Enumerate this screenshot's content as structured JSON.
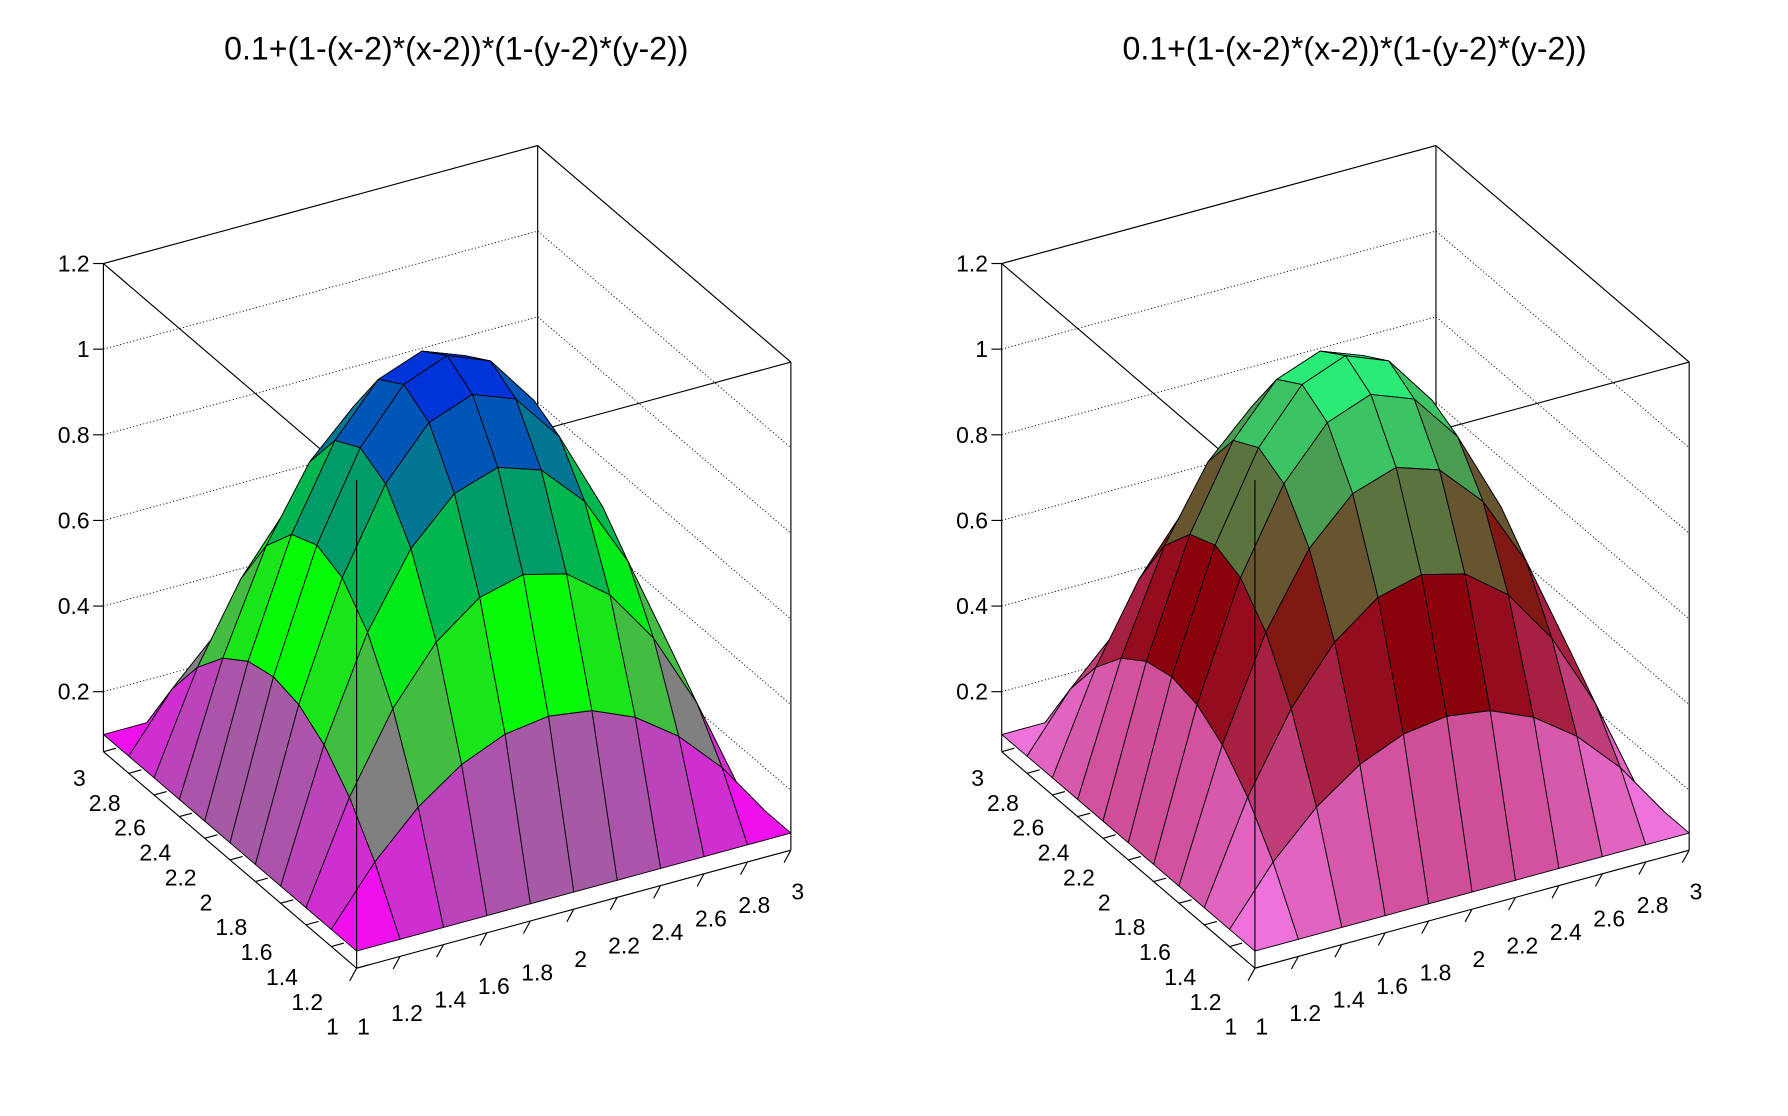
{
  "chart_data": [
    {
      "type": "surface",
      "title": "0.1+(1-(x-2)*(x-2))*(1-(y-2)*(y-2))",
      "x": [
        1,
        1.2,
        1.4,
        1.6,
        1.8,
        2,
        2.2,
        2.4,
        2.6,
        2.8,
        3
      ],
      "y": [
        1,
        1.2,
        1.4,
        1.6,
        1.8,
        2,
        2.2,
        2.4,
        2.6,
        2.8,
        3
      ],
      "z": [
        [
          0.1,
          0.1,
          0.1,
          0.1,
          0.1,
          0.1,
          0.1,
          0.1,
          0.1,
          0.1,
          0.1
        ],
        [
          0.1,
          0.2296,
          0.3304,
          0.4024,
          0.4456,
          0.46,
          0.4456,
          0.4024,
          0.3304,
          0.2296,
          0.1
        ],
        [
          0.1,
          0.3304,
          0.5096,
          0.6376,
          0.7144,
          0.74,
          0.7144,
          0.6376,
          0.5096,
          0.3304,
          0.1
        ],
        [
          0.1,
          0.4024,
          0.6376,
          0.8056,
          0.9064,
          0.94,
          0.9064,
          0.8056,
          0.6376,
          0.4024,
          0.1
        ],
        [
          0.1,
          0.4456,
          0.7144,
          0.9064,
          1.0216,
          1.06,
          1.0216,
          0.9064,
          0.7144,
          0.4456,
          0.1
        ],
        [
          0.1,
          0.46,
          0.74,
          0.94,
          1.06,
          1.1,
          1.06,
          0.94,
          0.74,
          0.46,
          0.1
        ],
        [
          0.1,
          0.4456,
          0.7144,
          0.9064,
          1.0216,
          1.06,
          1.0216,
          0.9064,
          0.7144,
          0.4456,
          0.1
        ],
        [
          0.1,
          0.4024,
          0.6376,
          0.8056,
          0.9064,
          0.94,
          0.9064,
          0.8056,
          0.6376,
          0.4024,
          0.1
        ],
        [
          0.1,
          0.3304,
          0.5096,
          0.6376,
          0.7144,
          0.74,
          0.7144,
          0.6376,
          0.5096,
          0.3304,
          0.1
        ],
        [
          0.1,
          0.2296,
          0.3304,
          0.4024,
          0.4456,
          0.46,
          0.4456,
          0.4024,
          0.3304,
          0.2296,
          0.1
        ],
        [
          0.1,
          0.1,
          0.1,
          0.1,
          0.1,
          0.1,
          0.1,
          0.1,
          0.1,
          0.1,
          0.1
        ]
      ],
      "xlim": [
        1,
        3
      ],
      "ylim": [
        1,
        3
      ],
      "zlim": [
        0.06,
        1.2
      ],
      "xticks": [
        1,
        1.2,
        1.4,
        1.6,
        1.8,
        2,
        2.2,
        2.4,
        2.6,
        2.8,
        3
      ],
      "yticks": [
        1,
        1.2,
        1.4,
        1.6,
        1.8,
        2,
        2.2,
        2.4,
        2.6,
        2.8,
        3
      ],
      "zticks": [
        0.2,
        0.4,
        0.6,
        0.8,
        1,
        1.2
      ],
      "palette": [
        "#ff00ff",
        "#00ff00",
        "#0022ee"
      ],
      "grid": true
    },
    {
      "type": "surface",
      "title": "0.1+(1-(x-2)*(x-2))*(1-(y-2)*(y-2))",
      "x": [
        1,
        1.2,
        1.4,
        1.6,
        1.8,
        2,
        2.2,
        2.4,
        2.6,
        2.8,
        3
      ],
      "y": [
        1,
        1.2,
        1.4,
        1.6,
        1.8,
        2,
        2.2,
        2.4,
        2.6,
        2.8,
        3
      ],
      "z": [
        [
          0.1,
          0.1,
          0.1,
          0.1,
          0.1,
          0.1,
          0.1,
          0.1,
          0.1,
          0.1,
          0.1
        ],
        [
          0.1,
          0.2296,
          0.3304,
          0.4024,
          0.4456,
          0.46,
          0.4456,
          0.4024,
          0.3304,
          0.2296,
          0.1
        ],
        [
          0.1,
          0.3304,
          0.5096,
          0.6376,
          0.7144,
          0.74,
          0.7144,
          0.6376,
          0.5096,
          0.3304,
          0.1
        ],
        [
          0.1,
          0.4024,
          0.6376,
          0.8056,
          0.9064,
          0.94,
          0.9064,
          0.8056,
          0.6376,
          0.4024,
          0.1
        ],
        [
          0.1,
          0.4456,
          0.7144,
          0.9064,
          1.0216,
          1.06,
          1.0216,
          0.9064,
          0.7144,
          0.4456,
          0.1
        ],
        [
          0.1,
          0.46,
          0.74,
          0.94,
          1.06,
          1.1,
          1.06,
          0.94,
          0.74,
          0.46,
          0.1
        ],
        [
          0.1,
          0.4456,
          0.7144,
          0.9064,
          1.0216,
          1.06,
          1.0216,
          0.9064,
          0.7144,
          0.4456,
          0.1
        ],
        [
          0.1,
          0.4024,
          0.6376,
          0.8056,
          0.9064,
          0.94,
          0.9064,
          0.8056,
          0.6376,
          0.4024,
          0.1
        ],
        [
          0.1,
          0.3304,
          0.5096,
          0.6376,
          0.7144,
          0.74,
          0.7144,
          0.6376,
          0.5096,
          0.3304,
          0.1
        ],
        [
          0.1,
          0.2296,
          0.3304,
          0.4024,
          0.4456,
          0.46,
          0.4456,
          0.4024,
          0.3304,
          0.2296,
          0.1
        ],
        [
          0.1,
          0.1,
          0.1,
          0.1,
          0.1,
          0.1,
          0.1,
          0.1,
          0.1,
          0.1,
          0.1
        ]
      ],
      "xlim": [
        1,
        3
      ],
      "ylim": [
        1,
        3
      ],
      "zlim": [
        0.06,
        1.2
      ],
      "xticks": [
        1,
        1.2,
        1.4,
        1.6,
        1.8,
        2,
        2.2,
        2.4,
        2.6,
        2.8,
        3
      ],
      "yticks": [
        1,
        1.2,
        1.4,
        1.6,
        1.8,
        2,
        2.2,
        2.4,
        2.6,
        2.8,
        3
      ],
      "zticks": [
        0.2,
        0.4,
        0.6,
        0.8,
        1,
        1.2
      ],
      "palette": [
        "#f47ae8",
        "#8a0008",
        "#22ff80"
      ],
      "grid": true
    }
  ]
}
